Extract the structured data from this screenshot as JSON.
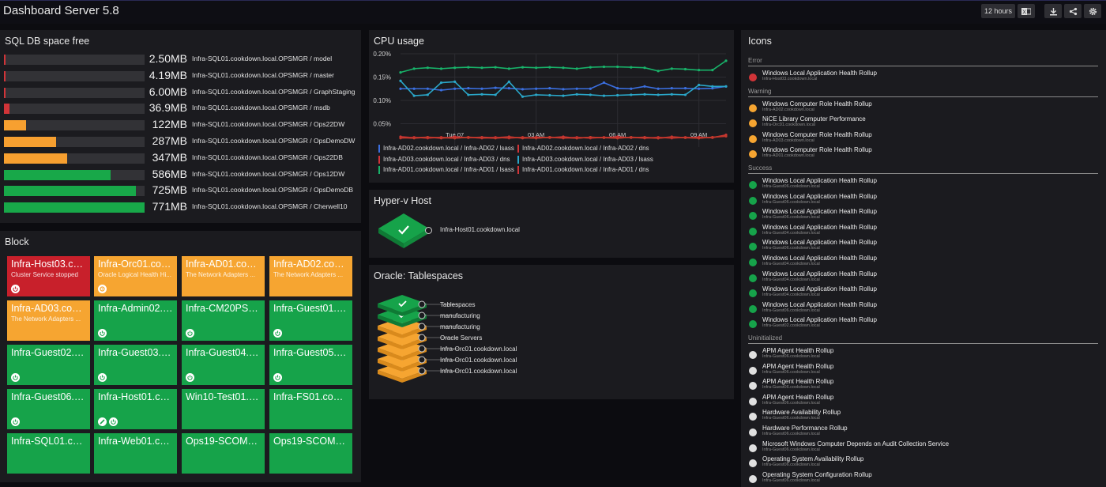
{
  "app": {
    "title": "Dashboard Server 5.8"
  },
  "toolbar": {
    "time_range": "12 hours",
    "excel_icon": "excel-icon",
    "download_icon": "download-icon",
    "share_icon": "share-icon",
    "settings_icon": "gear-icon"
  },
  "sql": {
    "title": "SQL DB space free",
    "rows": [
      {
        "value": "2.50MB",
        "name": "Infra-SQL01.cookdown.local.OPSMGR / model",
        "percent": 0,
        "color": "#d13438"
      },
      {
        "value": "4.19MB",
        "name": "Infra-SQL01.cookdown.local.OPSMGR / master",
        "percent": 1,
        "color": "#d13438"
      },
      {
        "value": "6.00MB",
        "name": "Infra-SQL01.cookdown.local.OPSMGR / GraphStaging",
        "percent": 1,
        "color": "#d13438"
      },
      {
        "value": "36.9MB",
        "name": "Infra-SQL01.cookdown.local.OPSMGR / msdb",
        "percent": 4,
        "color": "#d13438"
      },
      {
        "value": "122MB",
        "name": "Infra-SQL01.cookdown.local.OPSMGR / Ops22DW",
        "percent": 16,
        "color": "#f7a030"
      },
      {
        "value": "287MB",
        "name": "Infra-SQL01.cookdown.local.OPSMGR / OpsDemoDW",
        "percent": 37,
        "color": "#f7a030"
      },
      {
        "value": "347MB",
        "name": "Infra-SQL01.cookdown.local.OPSMGR / Ops22DB",
        "percent": 45,
        "color": "#f7a030"
      },
      {
        "value": "586MB",
        "name": "Infra-SQL01.cookdown.local.OPSMGR / Ops12DW",
        "percent": 76,
        "color": "#18a849"
      },
      {
        "value": "725MB",
        "name": "Infra-SQL01.cookdown.local.OPSMGR / OpsDemoDB",
        "percent": 94,
        "color": "#18a849"
      },
      {
        "value": "771MB",
        "name": "Infra-SQL01.cookdown.local.OPSMGR / Cherwell10",
        "percent": 100,
        "color": "#18a849"
      }
    ]
  },
  "block": {
    "title": "Block",
    "tiles": [
      {
        "title": "Infra-Host03.co...",
        "sub": "Cluster Service stopped",
        "color": "#c8202b",
        "icons": [
          "power-icon"
        ]
      },
      {
        "title": "Infra-Orc01.coo...",
        "sub": "Oracle Logical Health Hi...",
        "color": "#f6a531",
        "icons": [
          "gauge-icon"
        ]
      },
      {
        "title": "Infra-AD01.cook...",
        "sub": "The Network Adapters ...",
        "color": "#f6a531",
        "icons": []
      },
      {
        "title": "Infra-AD02.cook...",
        "sub": "The Network Adapters ...",
        "color": "#f6a531",
        "icons": []
      },
      {
        "title": "Infra-AD03.cook...",
        "sub": "The Network Adapters ...",
        "color": "#f6a531",
        "icons": []
      },
      {
        "title": "Infra-Admin02.c...",
        "sub": "",
        "color": "#16a34a",
        "icons": [
          "power-icon"
        ]
      },
      {
        "title": "Infra-CM20PS01...",
        "sub": "",
        "color": "#16a34a",
        "icons": [
          "power-icon"
        ]
      },
      {
        "title": "Infra-Guest01.c...",
        "sub": "",
        "color": "#16a34a",
        "icons": [
          "power-icon"
        ]
      },
      {
        "title": "Infra-Guest02.c...",
        "sub": "",
        "color": "#16a34a",
        "icons": [
          "power-icon"
        ]
      },
      {
        "title": "Infra-Guest03.c...",
        "sub": "",
        "color": "#16a34a",
        "icons": [
          "power-icon"
        ]
      },
      {
        "title": "Infra-Guest04.c...",
        "sub": "",
        "color": "#16a34a",
        "icons": [
          "power-icon"
        ]
      },
      {
        "title": "Infra-Guest05.c...",
        "sub": "",
        "color": "#16a34a",
        "icons": [
          "power-icon"
        ]
      },
      {
        "title": "Infra-Guest06.c...",
        "sub": "",
        "color": "#16a34a",
        "icons": [
          "power-icon"
        ]
      },
      {
        "title": "Infra-Host01.co...",
        "sub": "",
        "color": "#16a34a",
        "icons": [
          "link-icon",
          "power-icon"
        ]
      },
      {
        "title": "Win10-Test01.c...",
        "sub": "",
        "color": "#16a34a",
        "icons": []
      },
      {
        "title": "Infra-FS01.cook...",
        "sub": "",
        "color": "#16a34a",
        "icons": []
      },
      {
        "title": "Infra-SQL01.coo...",
        "sub": "",
        "color": "#16a34a",
        "icons": []
      },
      {
        "title": "Infra-Web01.co...",
        "sub": "",
        "color": "#16a34a",
        "icons": []
      },
      {
        "title": "Ops19-SCOM01...",
        "sub": "",
        "color": "#16a34a",
        "icons": []
      },
      {
        "title": "Ops19-SCOM02...",
        "sub": "",
        "color": "#16a34a",
        "icons": []
      }
    ]
  },
  "cpu": {
    "title": "CPU usage",
    "legend": [
      {
        "label": "Infra-AD02.cookdown.local / Infra-AD02 / lsass",
        "color": "#3b6fe0"
      },
      {
        "label": "Infra-AD02.cookdown.local / Infra-AD02 / dns",
        "color": "#d13438"
      },
      {
        "label": "Infra-AD03.cookdown.local / Infra-AD03 / dns",
        "color": "#d13438"
      },
      {
        "label": "Infra-AD03.cookdown.local / Infra-AD03 / lsass",
        "color": "#2aa7c9"
      },
      {
        "label": "Infra-AD01.cookdown.local / Infra-AD01 / lsass",
        "color": "#18b36a"
      },
      {
        "label": "Infra-AD01.cookdown.local / Infra-AD01 / dns",
        "color": "#d13438"
      }
    ]
  },
  "chart_data": {
    "type": "line",
    "title": "CPU usage",
    "xlabel": "",
    "ylabel": "",
    "ylim": [
      0,
      0.2
    ],
    "y_ticks": [
      "0.05%",
      "0.10%",
      "0.15%",
      "0.20%"
    ],
    "y_tick_values": [
      0.05,
      0.1,
      0.15,
      0.2
    ],
    "x_tick_labels": [
      "Tue 07",
      "03 AM",
      "06 AM",
      "09 AM"
    ],
    "x_tick_positions": [
      2,
      5,
      8,
      11
    ],
    "x_range": [
      0,
      12
    ],
    "series": [
      {
        "name": "Infra-AD01.cookdown.local / Infra-AD01 / lsass",
        "color": "#18b36a",
        "x": [
          0,
          0.5,
          1,
          1.5,
          2,
          2.5,
          3,
          3.5,
          4,
          4.5,
          5,
          5.5,
          6,
          6.5,
          7,
          7.5,
          8,
          8.5,
          9,
          9.5,
          10,
          10.5,
          11,
          11.5,
          12
        ],
        "y": [
          0.16,
          0.168,
          0.17,
          0.168,
          0.17,
          0.171,
          0.17,
          0.171,
          0.168,
          0.171,
          0.17,
          0.171,
          0.17,
          0.168,
          0.171,
          0.172,
          0.172,
          0.171,
          0.17,
          0.163,
          0.168,
          0.167,
          0.165,
          0.165,
          0.185
        ]
      },
      {
        "name": "Infra-AD02.cookdown.local / Infra-AD02 / lsass",
        "color": "#3b6fe0",
        "x": [
          0,
          0.5,
          1,
          1.5,
          2,
          2.5,
          3,
          3.5,
          4,
          4.5,
          5,
          5.5,
          6,
          6.5,
          7,
          7.5,
          8,
          8.5,
          9,
          9.5,
          10,
          10.5,
          11,
          11.5,
          12
        ],
        "y": [
          0.125,
          0.125,
          0.125,
          0.122,
          0.125,
          0.126,
          0.125,
          0.127,
          0.126,
          0.124,
          0.125,
          0.126,
          0.124,
          0.125,
          0.125,
          0.138,
          0.126,
          0.125,
          0.13,
          0.125,
          0.126,
          0.126,
          0.125,
          0.126,
          0.13
        ]
      },
      {
        "name": "Infra-AD03.cookdown.local / Infra-AD03 / lsass",
        "color": "#2aa7c9",
        "x": [
          0,
          0.5,
          1,
          1.5,
          2,
          2.5,
          3,
          3.5,
          4,
          4.5,
          5,
          5.5,
          6,
          6.5,
          7,
          7.5,
          8,
          8.5,
          9,
          9.5,
          10,
          10.5,
          11,
          11.5,
          12
        ],
        "y": [
          0.142,
          0.11,
          0.112,
          0.138,
          0.14,
          0.112,
          0.113,
          0.112,
          0.14,
          0.108,
          0.112,
          0.111,
          0.11,
          0.113,
          0.112,
          0.11,
          0.111,
          0.112,
          0.113,
          0.112,
          0.113,
          0.112,
          0.133,
          0.13,
          0.13
        ]
      },
      {
        "name": "Infra-AD01.cookdown.local / Infra-AD01 / dns",
        "color": "#d13438",
        "x": [
          0,
          0.5,
          1,
          1.5,
          2,
          2.5,
          3,
          3.5,
          4,
          4.5,
          5,
          5.5,
          6,
          6.5,
          7,
          7.5,
          8,
          8.5,
          9,
          9.5,
          10,
          10.5,
          11,
          11.5,
          12
        ],
        "y": [
          0.022,
          0.02,
          0.021,
          0.019,
          0.022,
          0.02,
          0.021,
          0.02,
          0.022,
          0.019,
          0.021,
          0.02,
          0.022,
          0.019,
          0.021,
          0.02,
          0.022,
          0.02,
          0.021,
          0.019,
          0.022,
          0.02,
          0.021,
          0.02,
          0.026
        ]
      },
      {
        "name": "Infra-AD02.cookdown.local / Infra-AD02 / dns",
        "color": "#b82a2e",
        "x": [
          0,
          0.5,
          1,
          1.5,
          2,
          2.5,
          3,
          3.5,
          4,
          4.5,
          5,
          5.5,
          6,
          6.5,
          7,
          7.5,
          8,
          8.5,
          9,
          9.5,
          10,
          10.5,
          11,
          11.5,
          12
        ],
        "y": [
          0.019,
          0.021,
          0.019,
          0.021,
          0.019,
          0.021,
          0.019,
          0.021,
          0.019,
          0.021,
          0.019,
          0.021,
          0.019,
          0.021,
          0.019,
          0.021,
          0.019,
          0.021,
          0.019,
          0.021,
          0.019,
          0.021,
          0.019,
          0.021,
          0.023
        ]
      },
      {
        "name": "Infra-AD03.cookdown.local / Infra-AD03 / dns",
        "color": "#c0392b",
        "x": [
          0,
          0.5,
          1,
          1.5,
          2,
          2.5,
          3,
          3.5,
          4,
          4.5,
          5,
          5.5,
          6,
          6.5,
          7,
          7.5,
          8,
          8.5,
          9,
          9.5,
          10,
          10.5,
          11,
          11.5,
          12
        ],
        "y": [
          0.02,
          0.019,
          0.021,
          0.02,
          0.019,
          0.021,
          0.02,
          0.019,
          0.021,
          0.02,
          0.019,
          0.021,
          0.02,
          0.019,
          0.021,
          0.02,
          0.019,
          0.021,
          0.02,
          0.019,
          0.021,
          0.02,
          0.019,
          0.021,
          0.024
        ]
      }
    ]
  },
  "hyperv": {
    "title": "Hyper-v Host",
    "label": "Infra-Host01.cookdown.local",
    "status_color": "#16a34a"
  },
  "oracle": {
    "title": "Oracle: Tablespaces",
    "items": [
      {
        "label": "Tablespaces",
        "color": "#16a34a",
        "icon": "check-icon"
      },
      {
        "label": "manufacturing",
        "color": "#16a34a",
        "icon": "check-icon"
      },
      {
        "label": "manufacturing",
        "color": "#f6a531",
        "icon": "warn-icon"
      },
      {
        "label": "Oracle Servers",
        "color": "#f6a531",
        "icon": "warn-icon"
      },
      {
        "label": "Infra-Orc01.cookdown.local",
        "color": "#f6a531",
        "icon": "warn-icon"
      },
      {
        "label": "Infra-Orc01.cookdown.local",
        "color": "#f6a531",
        "icon": "warn-icon"
      },
      {
        "label": "Infra-Orc01.cookdown.local",
        "color": "#f6a531",
        "icon": "warn-icon"
      }
    ]
  },
  "icons_panel": {
    "title": "Icons",
    "sections": [
      {
        "name": "Error",
        "color": "#d13438",
        "items": [
          {
            "name": "Windows Local Application Health Rollup",
            "sub": "Infra-Host03.cookdown.local"
          }
        ]
      },
      {
        "name": "Warning",
        "color": "#f6a531",
        "items": [
          {
            "name": "Windows Computer Role Health Rollup",
            "sub": "Infra-AD02.cookdown.local"
          },
          {
            "name": "NiCE Library Computer Performance",
            "sub": "Infra-Orc01.cookdown.local"
          },
          {
            "name": "Windows Computer Role Health Rollup",
            "sub": "Infra-AD03.cookdown.local"
          },
          {
            "name": "Windows Computer Role Health Rollup",
            "sub": "Infra-AD01.cookdown.local"
          }
        ]
      },
      {
        "name": "Success",
        "color": "#16a34a",
        "items": [
          {
            "name": "Windows Local Application Health Rollup",
            "sub": "Infra-Guest06.cookdown.local"
          },
          {
            "name": "Windows Local Application Health Rollup",
            "sub": "Infra-Guest06.cookdown.local"
          },
          {
            "name": "Windows Local Application Health Rollup",
            "sub": "Infra-Guest06.cookdown.local"
          },
          {
            "name": "Windows Local Application Health Rollup",
            "sub": "Infra-Guest04.cookdown.local"
          },
          {
            "name": "Windows Local Application Health Rollup",
            "sub": "Infra-Guest06.cookdown.local"
          },
          {
            "name": "Windows Local Application Health Rollup",
            "sub": "Infra-Guest04.cookdown.local"
          },
          {
            "name": "Windows Local Application Health Rollup",
            "sub": "Infra-Guest04.cookdown.local"
          },
          {
            "name": "Windows Local Application Health Rollup",
            "sub": "Infra-Guest04.cookdown.local"
          },
          {
            "name": "Windows Local Application Health Rollup",
            "sub": "Infra-Guest06.cookdown.local"
          },
          {
            "name": "Windows Local Application Health Rollup",
            "sub": "Infra-Guest02.cookdown.local"
          }
        ]
      },
      {
        "name": "Uninitialized",
        "color": "#e0e0e0",
        "items": [
          {
            "name": "APM Agent Health Rollup",
            "sub": "Infra-Guest06.cookdown.local"
          },
          {
            "name": "APM Agent Health Rollup",
            "sub": "Infra-Guest06.cookdown.local"
          },
          {
            "name": "APM Agent Health Rollup",
            "sub": "Infra-Guest06.cookdown.local"
          },
          {
            "name": "APM Agent Health Rollup",
            "sub": "Infra-Guest06.cookdown.local"
          },
          {
            "name": "Hardware Availability Rollup",
            "sub": "Infra-Guest06.cookdown.local"
          },
          {
            "name": "Hardware Performance Rollup",
            "sub": "Infra-Guest06.cookdown.local"
          },
          {
            "name": "Microsoft Windows Computer Depends on Audit Collection Service",
            "sub": "Infra-Guest06.cookdown.local"
          },
          {
            "name": "Operating System Availability Rollup",
            "sub": "Infra-Guest06.cookdown.local"
          },
          {
            "name": "Operating System Configuration Rollup",
            "sub": "Infra-Guest06.cookdown.local"
          }
        ]
      }
    ]
  }
}
